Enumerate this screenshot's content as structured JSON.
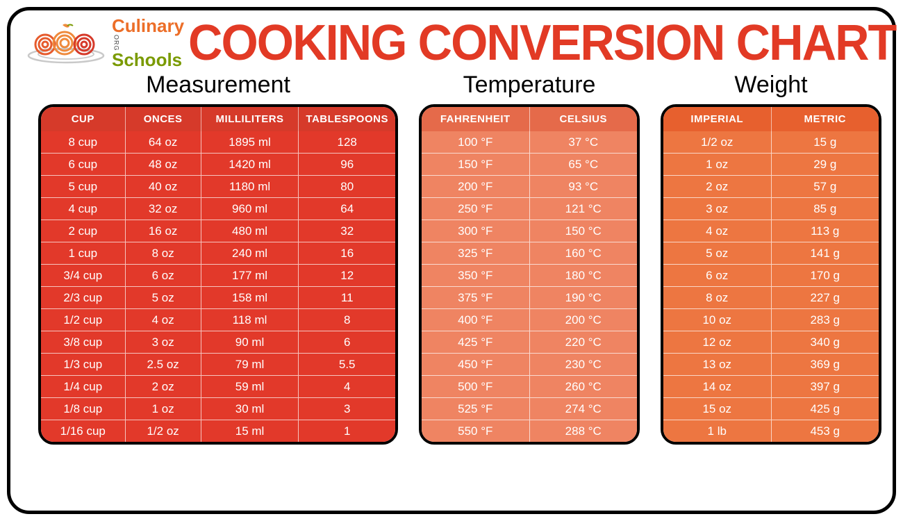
{
  "colors": {
    "title": "#e23a25",
    "frame_border": "#000000",
    "measurement_header": "#d63a2a",
    "measurement_body": "#e2392a",
    "temperature_header": "#e56a4a",
    "temperature_body": "#ef8462",
    "weight_header": "#e7602e",
    "weight_body": "#ed7641",
    "cell_border": "rgba(255,255,255,0.7)"
  },
  "brand": {
    "top": "Culinary",
    "bottom": "Schools",
    "suffix": "ORG"
  },
  "title": "COOKING CONVERSION CHART",
  "sections": {
    "measurement": {
      "title": "Measurement",
      "columns": [
        "CUP",
        "ONCES",
        "MILLILITERS",
        "TABLESPOONS"
      ],
      "col_widths": [
        "25%",
        "22%",
        "28%",
        "25%"
      ],
      "header_bg": "#d63a2a",
      "body_bg": "#e2392a",
      "rows": [
        [
          "8 cup",
          "64 oz",
          "1895 ml",
          "128"
        ],
        [
          "6 cup",
          "48 oz",
          "1420 ml",
          "96"
        ],
        [
          "5 cup",
          "40 oz",
          "1180 ml",
          "80"
        ],
        [
          "4 cup",
          "32 oz",
          "960 ml",
          "64"
        ],
        [
          "2 cup",
          "16 oz",
          "480 ml",
          "32"
        ],
        [
          "1 cup",
          "8 oz",
          "240 ml",
          "16"
        ],
        [
          "3/4 cup",
          "6 oz",
          "177 ml",
          "12"
        ],
        [
          "2/3 cup",
          "5 oz",
          "158 ml",
          "11"
        ],
        [
          "1/2 cup",
          "4 oz",
          "118 ml",
          "8"
        ],
        [
          "3/8 cup",
          "3 oz",
          "90 ml",
          "6"
        ],
        [
          "1/3 cup",
          "2.5 oz",
          "79 ml",
          "5.5"
        ],
        [
          "1/4 cup",
          "2 oz",
          "59 ml",
          "4"
        ],
        [
          "1/8 cup",
          "1 oz",
          "30 ml",
          "3"
        ],
        [
          "1/16 cup",
          "1/2 oz",
          "15 ml",
          "1"
        ]
      ]
    },
    "temperature": {
      "title": "Temperature",
      "columns": [
        "FAHRENHEIT",
        "CELSIUS"
      ],
      "col_widths": [
        "50%",
        "50%"
      ],
      "header_bg": "#e56a4a",
      "body_bg": "#ef8462",
      "rows": [
        [
          "100 °F",
          "37 °C"
        ],
        [
          "150 °F",
          "65 °C"
        ],
        [
          "200 °F",
          "93 °C"
        ],
        [
          "250 °F",
          "121 °C"
        ],
        [
          "300 °F",
          "150 °C"
        ],
        [
          "325 °F",
          "160 °C"
        ],
        [
          "350 °F",
          "180 °C"
        ],
        [
          "375 °F",
          "190 °C"
        ],
        [
          "400 °F",
          "200 °C"
        ],
        [
          "425 °F",
          "220 °C"
        ],
        [
          "450 °F",
          "230 °C"
        ],
        [
          "500 °F",
          "260 °C"
        ],
        [
          "525 °F",
          "274 °C"
        ],
        [
          "550 °F",
          "288 °C"
        ]
      ]
    },
    "weight": {
      "title": "Weight",
      "columns": [
        "IMPERIAL",
        "METRIC"
      ],
      "col_widths": [
        "50%",
        "50%"
      ],
      "header_bg": "#e7602e",
      "body_bg": "#ed7641",
      "rows": [
        [
          "1/2 oz",
          "15 g"
        ],
        [
          "1 oz",
          "29 g"
        ],
        [
          "2 oz",
          "57 g"
        ],
        [
          "3 oz",
          "85 g"
        ],
        [
          "4 oz",
          "113 g"
        ],
        [
          "5 oz",
          "141 g"
        ],
        [
          "6 oz",
          "170 g"
        ],
        [
          "8 oz",
          "227 g"
        ],
        [
          "10 oz",
          "283 g"
        ],
        [
          "12 oz",
          "340 g"
        ],
        [
          "13 oz",
          "369 g"
        ],
        [
          "14 oz",
          "397 g"
        ],
        [
          "15 oz",
          "425 g"
        ],
        [
          "1 lb",
          "453 g"
        ]
      ]
    }
  }
}
